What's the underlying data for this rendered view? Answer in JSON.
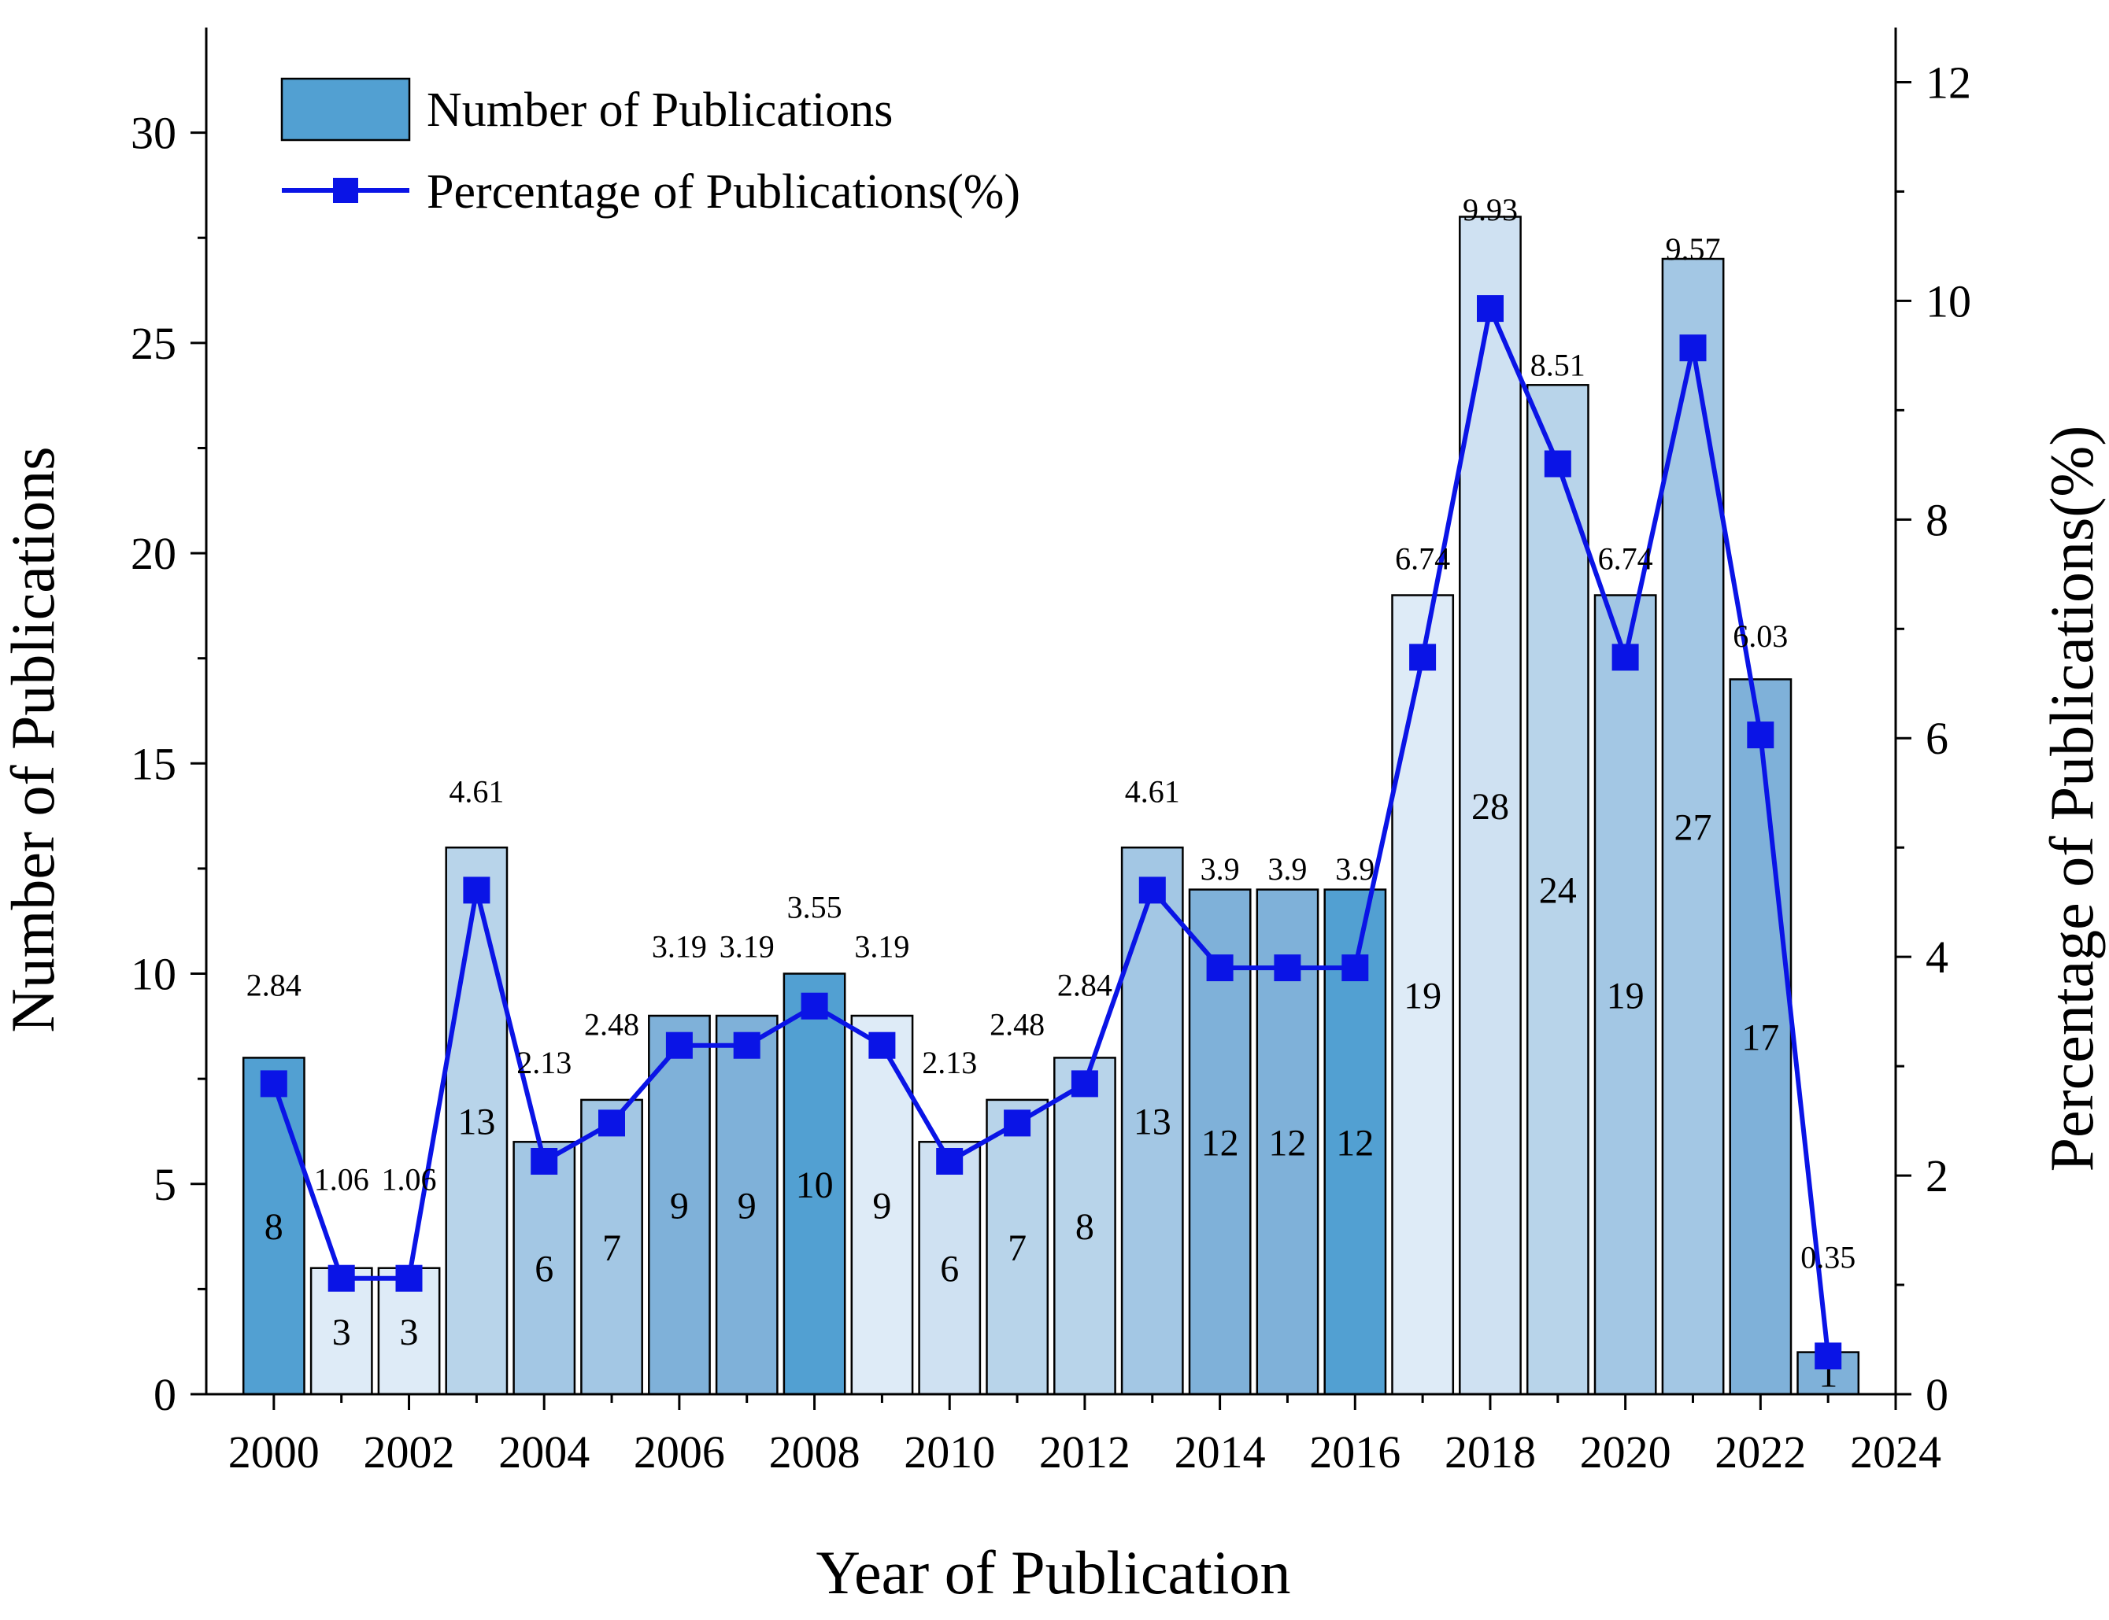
{
  "chart_data": {
    "type": "bar+line",
    "categories": [
      "2000",
      "2001",
      "2002",
      "2003",
      "2004",
      "2005",
      "2006",
      "2007",
      "2008",
      "2009",
      "2010",
      "2011",
      "2012",
      "2013",
      "2014",
      "2015",
      "2016",
      "2017",
      "2018",
      "2019",
      "2020",
      "2021",
      "2022",
      "2023"
    ],
    "x": [
      2000,
      2001,
      2002,
      2003,
      2004,
      2005,
      2006,
      2007,
      2008,
      2009,
      2010,
      2011,
      2012,
      2013,
      2014,
      2015,
      2016,
      2017,
      2018,
      2019,
      2020,
      2021,
      2022,
      2023
    ],
    "series": [
      {
        "name": "Number of Publications",
        "kind": "bar",
        "axis": "left",
        "values": [
          8,
          3,
          3,
          13,
          6,
          7,
          9,
          9,
          10,
          9,
          6,
          7,
          8,
          13,
          12,
          12,
          12,
          19,
          28,
          24,
          19,
          27,
          17,
          1
        ],
        "labels": [
          "8",
          "3",
          "3",
          "13",
          "6",
          "7",
          "9",
          "9",
          "10",
          "9",
          "6",
          "7",
          "8",
          "13",
          "12",
          "12",
          "12",
          "19",
          "28",
          "24",
          "19",
          "27",
          "17",
          "1"
        ],
        "fills": [
          "#52a0d2",
          "#deebf7",
          "#deebf7",
          "#b8d4ea",
          "#a3c7e4",
          "#a3c7e4",
          "#7fb1d9",
          "#7fb1d9",
          "#52a0d2",
          "#deebf7",
          "#cfe1f2",
          "#b8d4ea",
          "#b8d4ea",
          "#a3c7e4",
          "#7fb1d9",
          "#7fb1d9",
          "#52a0d2",
          "#deebf7",
          "#cfe1f2",
          "#b8d4ea",
          "#a3c7e4",
          "#a3c7e4",
          "#7fb1d9",
          "#7fb1d9"
        ]
      },
      {
        "name": "Percentage of Publications(%)",
        "kind": "line",
        "axis": "right",
        "values": [
          2.84,
          1.06,
          1.06,
          4.61,
          2.13,
          2.48,
          3.19,
          3.19,
          3.55,
          3.19,
          2.13,
          2.48,
          2.84,
          4.61,
          3.9,
          3.9,
          3.9,
          6.74,
          9.93,
          8.51,
          6.74,
          9.57,
          6.03,
          0.35
        ],
        "labels": [
          "2.84",
          "1.06",
          "1.06",
          "4.61",
          "2.13",
          "2.48",
          "3.19",
          "3.19",
          "3.55",
          "3.19",
          "2.13",
          "2.48",
          "2.84",
          "4.61",
          "3.9",
          "3.9",
          "3.9",
          "6.74",
          "9.93",
          "8.51",
          "6.74",
          "9.57",
          "6.03",
          "0.35"
        ],
        "color": "#0a14e6"
      }
    ],
    "xlabel": "Year of Publication",
    "ylabel": "Number of Publications",
    "y2label": "Percentage of Publications(%)",
    "xlim": [
      1999,
      2024
    ],
    "ylim": [
      0,
      32.5
    ],
    "y2lim": [
      0,
      12.5
    ],
    "xticks": [
      2000,
      2002,
      2004,
      2006,
      2008,
      2010,
      2012,
      2014,
      2016,
      2018,
      2020,
      2022,
      2024
    ],
    "xtick_labels": [
      "2000",
      "2002",
      "2004",
      "2006",
      "2008",
      "2010",
      "2012",
      "2014",
      "2016",
      "2018",
      "2020",
      "2022",
      "2024"
    ],
    "yticks": [
      0,
      5,
      10,
      15,
      20,
      25,
      30
    ],
    "ytick_labels": [
      "0",
      "5",
      "10",
      "15",
      "20",
      "25",
      "30"
    ],
    "y2ticks": [
      0,
      2,
      4,
      6,
      8,
      10,
      12
    ],
    "y2tick_labels": [
      "0",
      "2",
      "4",
      "6",
      "8",
      "10",
      "12"
    ],
    "legend": {
      "position": "top-left",
      "bar_label": "Number of Publications",
      "line_label": "Percentage of Publications(%)",
      "bar_swatch_color": "#52a0d2"
    }
  }
}
